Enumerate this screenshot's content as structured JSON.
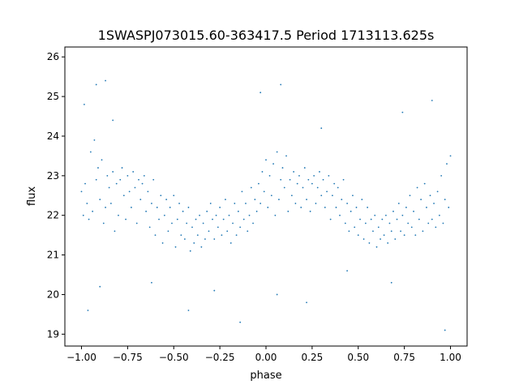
{
  "chart_data": {
    "type": "scatter",
    "title": "1SWASPJ073015.60-363417.5 Period 1713113.625s",
    "xlabel": "phase",
    "ylabel": "flux",
    "xlim": [
      -1.09,
      1.09
    ],
    "ylim": [
      18.7,
      26.25
    ],
    "xticks": [
      -1.0,
      -0.75,
      -0.5,
      -0.25,
      0.0,
      0.25,
      0.5,
      0.75,
      1.0
    ],
    "xtick_labels": [
      "−1.00",
      "−0.75",
      "−0.50",
      "−0.25",
      "0.00",
      "0.25",
      "0.50",
      "0.75",
      "1.00"
    ],
    "yticks": [
      19,
      20,
      21,
      22,
      23,
      24,
      25,
      26
    ],
    "ytick_labels": [
      "19",
      "20",
      "21",
      "22",
      "23",
      "24",
      "25",
      "26"
    ],
    "grid": false,
    "marker_color": "#1f77b4",
    "series": [
      {
        "points": [
          [
            -1.0,
            22.6
          ],
          [
            -0.99,
            22.0
          ],
          [
            -0.98,
            22.8
          ],
          [
            -0.97,
            22.3
          ],
          [
            -0.96,
            21.9
          ],
          [
            -0.95,
            23.6
          ],
          [
            -0.94,
            22.1
          ],
          [
            -0.93,
            23.9
          ],
          [
            -0.92,
            22.9
          ],
          [
            -0.91,
            23.2
          ],
          [
            -0.9,
            22.4
          ],
          [
            -0.89,
            23.4
          ],
          [
            -0.88,
            21.8
          ],
          [
            -0.87,
            22.2
          ],
          [
            -0.86,
            23.0
          ],
          [
            -0.85,
            22.7
          ],
          [
            -0.84,
            22.3
          ],
          [
            -0.83,
            23.1
          ],
          [
            -0.82,
            21.6
          ],
          [
            -0.81,
            22.8
          ],
          [
            -0.8,
            22.0
          ],
          [
            -0.79,
            22.9
          ],
          [
            -0.78,
            23.2
          ],
          [
            -0.77,
            22.5
          ],
          [
            -0.76,
            21.9
          ],
          [
            -0.75,
            23.0
          ],
          [
            -0.74,
            22.6
          ],
          [
            -0.73,
            22.2
          ],
          [
            -0.72,
            23.1
          ],
          [
            -0.71,
            22.7
          ],
          [
            -0.7,
            21.8
          ],
          [
            -0.69,
            22.9
          ],
          [
            -0.68,
            22.4
          ],
          [
            -0.67,
            22.8
          ],
          [
            -0.66,
            23.0
          ],
          [
            -0.65,
            22.1
          ],
          [
            -0.64,
            22.6
          ],
          [
            -0.63,
            21.7
          ],
          [
            -0.62,
            22.3
          ],
          [
            -0.61,
            22.9
          ],
          [
            -0.6,
            21.5
          ],
          [
            -0.59,
            22.2
          ],
          [
            -0.58,
            21.9
          ],
          [
            -0.57,
            22.5
          ],
          [
            -0.56,
            21.3
          ],
          [
            -0.55,
            22.0
          ],
          [
            -0.54,
            22.4
          ],
          [
            -0.53,
            21.6
          ],
          [
            -0.52,
            22.2
          ],
          [
            -0.51,
            21.8
          ],
          [
            -0.5,
            22.5
          ],
          [
            -0.49,
            21.2
          ],
          [
            -0.48,
            21.9
          ],
          [
            -0.47,
            22.3
          ],
          [
            -0.46,
            21.5
          ],
          [
            -0.45,
            22.1
          ],
          [
            -0.44,
            21.4
          ],
          [
            -0.43,
            21.8
          ],
          [
            -0.42,
            22.2
          ],
          [
            -0.41,
            21.1
          ],
          [
            -0.4,
            21.7
          ],
          [
            -0.39,
            21.3
          ],
          [
            -0.38,
            21.9
          ],
          [
            -0.37,
            21.5
          ],
          [
            -0.36,
            22.0
          ],
          [
            -0.35,
            21.2
          ],
          [
            -0.34,
            21.8
          ],
          [
            -0.33,
            21.4
          ],
          [
            -0.32,
            22.1
          ],
          [
            -0.31,
            21.6
          ],
          [
            -0.3,
            22.3
          ],
          [
            -0.29,
            21.9
          ],
          [
            -0.28,
            21.4
          ],
          [
            -0.27,
            22.0
          ],
          [
            -0.26,
            21.7
          ],
          [
            -0.25,
            22.2
          ],
          [
            -0.24,
            21.5
          ],
          [
            -0.23,
            21.9
          ],
          [
            -0.22,
            22.4
          ],
          [
            -0.21,
            21.6
          ],
          [
            -0.2,
            22.0
          ],
          [
            -0.19,
            21.3
          ],
          [
            -0.18,
            21.8
          ],
          [
            -0.17,
            22.3
          ],
          [
            -0.16,
            21.5
          ],
          [
            -0.15,
            22.1
          ],
          [
            -0.14,
            21.7
          ],
          [
            -0.13,
            22.6
          ],
          [
            -0.12,
            21.9
          ],
          [
            -0.11,
            22.3
          ],
          [
            -0.1,
            21.6
          ],
          [
            -0.09,
            22.0
          ],
          [
            -0.08,
            22.7
          ],
          [
            -0.07,
            21.8
          ],
          [
            -0.06,
            22.4
          ],
          [
            -0.05,
            22.1
          ],
          [
            -0.04,
            22.8
          ],
          [
            -0.03,
            22.3
          ],
          [
            -0.02,
            23.1
          ],
          [
            -0.01,
            22.6
          ],
          [
            0.0,
            23.4
          ],
          [
            0.01,
            22.2
          ],
          [
            0.02,
            23.0
          ],
          [
            0.03,
            22.5
          ],
          [
            0.04,
            23.3
          ],
          [
            0.05,
            22.0
          ],
          [
            0.06,
            23.6
          ],
          [
            0.07,
            22.4
          ],
          [
            0.08,
            22.9
          ],
          [
            0.09,
            23.2
          ],
          [
            0.1,
            22.7
          ],
          [
            0.11,
            23.5
          ],
          [
            0.12,
            22.1
          ],
          [
            0.13,
            22.9
          ],
          [
            0.14,
            22.5
          ],
          [
            0.15,
            23.1
          ],
          [
            0.16,
            22.3
          ],
          [
            0.17,
            22.8
          ],
          [
            0.18,
            23.0
          ],
          [
            0.19,
            22.2
          ],
          [
            0.2,
            22.7
          ],
          [
            0.21,
            23.2
          ],
          [
            0.22,
            22.4
          ],
          [
            0.23,
            22.9
          ],
          [
            0.24,
            22.1
          ],
          [
            0.25,
            22.8
          ],
          [
            0.26,
            23.0
          ],
          [
            0.27,
            22.3
          ],
          [
            0.28,
            22.7
          ],
          [
            0.29,
            23.1
          ],
          [
            0.3,
            22.5
          ],
          [
            0.31,
            22.9
          ],
          [
            0.32,
            22.2
          ],
          [
            0.33,
            22.6
          ],
          [
            0.34,
            23.0
          ],
          [
            0.35,
            21.9
          ],
          [
            0.36,
            22.5
          ],
          [
            0.37,
            22.8
          ],
          [
            0.38,
            22.2
          ],
          [
            0.39,
            22.7
          ],
          [
            0.4,
            22.0
          ],
          [
            0.41,
            22.4
          ],
          [
            0.42,
            22.9
          ],
          [
            0.43,
            21.8
          ],
          [
            0.44,
            22.3
          ],
          [
            0.45,
            21.6
          ],
          [
            0.46,
            22.1
          ],
          [
            0.47,
            22.5
          ],
          [
            0.48,
            21.7
          ],
          [
            0.49,
            22.2
          ],
          [
            0.5,
            21.5
          ],
          [
            0.51,
            21.9
          ],
          [
            0.52,
            22.4
          ],
          [
            0.53,
            21.4
          ],
          [
            0.54,
            21.8
          ],
          [
            0.55,
            22.2
          ],
          [
            0.56,
            21.3
          ],
          [
            0.57,
            21.9
          ],
          [
            0.58,
            21.6
          ],
          [
            0.59,
            22.0
          ],
          [
            0.6,
            21.2
          ],
          [
            0.61,
            21.7
          ],
          [
            0.62,
            21.4
          ],
          [
            0.63,
            21.9
          ],
          [
            0.64,
            21.5
          ],
          [
            0.65,
            22.0
          ],
          [
            0.66,
            21.3
          ],
          [
            0.67,
            21.8
          ],
          [
            0.68,
            21.6
          ],
          [
            0.69,
            22.1
          ],
          [
            0.7,
            21.4
          ],
          [
            0.71,
            21.9
          ],
          [
            0.72,
            22.3
          ],
          [
            0.73,
            21.6
          ],
          [
            0.74,
            22.0
          ],
          [
            0.75,
            21.5
          ],
          [
            0.76,
            22.2
          ],
          [
            0.77,
            21.8
          ],
          [
            0.78,
            22.5
          ],
          [
            0.79,
            21.7
          ],
          [
            0.8,
            22.1
          ],
          [
            0.81,
            21.5
          ],
          [
            0.82,
            22.7
          ],
          [
            0.83,
            21.9
          ],
          [
            0.84,
            22.4
          ],
          [
            0.85,
            21.6
          ],
          [
            0.86,
            22.8
          ],
          [
            0.87,
            22.2
          ],
          [
            0.88,
            21.8
          ],
          [
            0.89,
            22.5
          ],
          [
            0.9,
            21.9
          ],
          [
            0.91,
            22.3
          ],
          [
            0.92,
            21.7
          ],
          [
            0.93,
            22.6
          ],
          [
            0.94,
            22.0
          ],
          [
            0.95,
            23.0
          ],
          [
            0.96,
            21.8
          ],
          [
            0.97,
            22.4
          ],
          [
            0.98,
            23.3
          ],
          [
            0.99,
            22.2
          ],
          [
            1.0,
            23.5
          ],
          [
            -0.985,
            24.8
          ],
          [
            -0.92,
            25.3
          ],
          [
            -0.87,
            25.4
          ],
          [
            -0.9,
            20.2
          ],
          [
            -0.965,
            19.6
          ],
          [
            -0.03,
            25.1
          ],
          [
            0.08,
            25.3
          ],
          [
            0.06,
            20.0
          ],
          [
            0.9,
            24.9
          ],
          [
            0.97,
            19.1
          ],
          [
            -0.42,
            19.6
          ],
          [
            -0.28,
            20.1
          ],
          [
            -0.14,
            19.3
          ],
          [
            0.22,
            19.8
          ],
          [
            0.68,
            20.3
          ],
          [
            0.74,
            24.6
          ],
          [
            -0.62,
            20.3
          ],
          [
            0.44,
            20.6
          ],
          [
            -0.83,
            24.4
          ],
          [
            0.3,
            24.2
          ]
        ]
      }
    ]
  }
}
